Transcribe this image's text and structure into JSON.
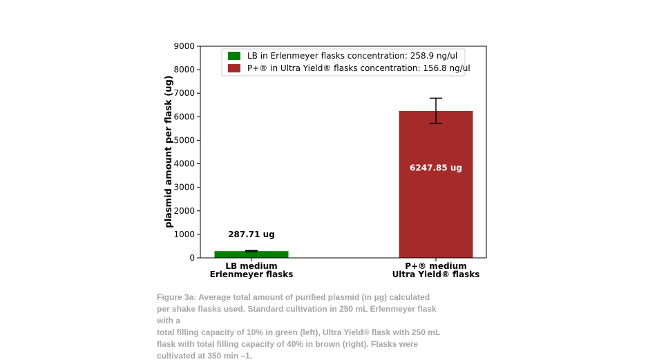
{
  "chart_data": {
    "type": "bar",
    "categories": [
      [
        "LB medium",
        "Erlenmeyer flasks"
      ],
      [
        "P+® medium",
        "Ultra Yield® flasks"
      ]
    ],
    "values": [
      287.71,
      6247.85
    ],
    "error_bars": [
      [
        262,
        312
      ],
      [
        5720,
        6790
      ]
    ],
    "data_labels": [
      "287.71 ug",
      "6247.85 ug"
    ],
    "colors": [
      "#008000",
      "#a52a2a"
    ],
    "ylabel": "plasmid amount per flask (ug)",
    "ylim": [
      0,
      9000
    ],
    "yticks": [
      0,
      1000,
      2000,
      3000,
      4000,
      5000,
      6000,
      7000,
      8000,
      9000
    ],
    "legend": {
      "placement": "top",
      "entries": [
        "LB in Erlenmeyer flasks concentration: 258.9 ng/ul",
        "P+® in Ultra Yield® flasks concentration: 156.8 ng/ul"
      ]
    },
    "grid": false
  },
  "caption": [
    "Figure 3a: Average total amount of purified plasmid (in μg) calculated",
    "per shake flasks used. Standard cultivation in 250 mL Erlenmeyer flask",
    "with a",
    "total filling capacity of 10% in green (left), Ultra Yield® flask with 250 mL",
    "flask with total filling capacity of 40% in brown (right). Flasks were",
    "cultivated at 350 min –1."
  ]
}
